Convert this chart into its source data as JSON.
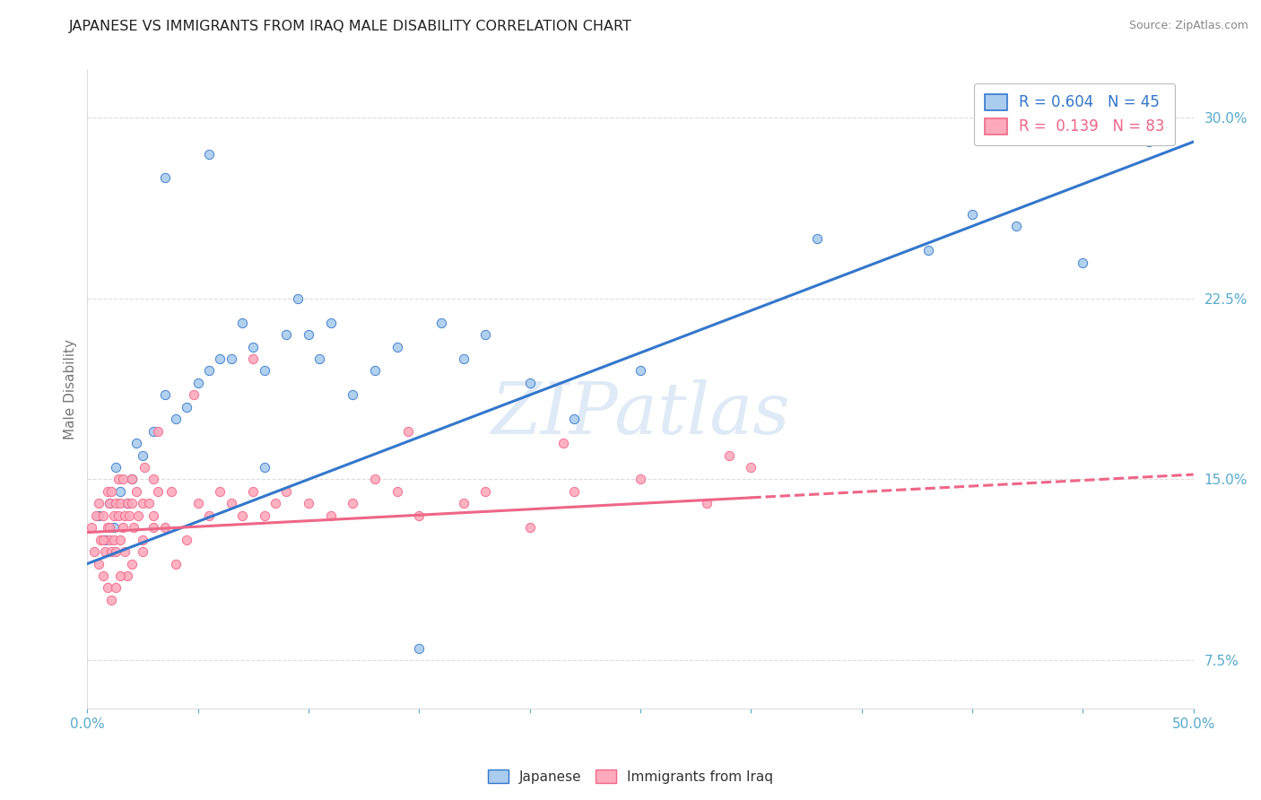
{
  "title": "JAPANESE VS IMMIGRANTS FROM IRAQ MALE DISABILITY CORRELATION CHART",
  "source": "Source: ZipAtlas.com",
  "ylabel": "Male Disability",
  "xlim": [
    0.0,
    50.0
  ],
  "ylim": [
    5.5,
    32.0
  ],
  "yticks": [
    7.5,
    15.0,
    22.5,
    30.0
  ],
  "ytick_labels": [
    "7.5%",
    "15.0%",
    "22.5%",
    "30.0%"
  ],
  "blue_R": 0.604,
  "blue_N": 45,
  "pink_R": 0.139,
  "pink_N": 83,
  "blue_color": "#AACCEE",
  "pink_color": "#FFAABC",
  "blue_line_color": "#3377CC",
  "pink_line_color": "#EE6688",
  "watermark": "ZIPatlas",
  "legend_entries": [
    "Japanese",
    "Immigrants from Iraq"
  ],
  "blue_scatter_x": [
    0.5,
    0.8,
    1.0,
    1.2,
    1.3,
    1.5,
    1.8,
    2.0,
    2.2,
    2.5,
    3.0,
    3.5,
    4.0,
    4.5,
    5.0,
    5.5,
    6.0,
    6.5,
    7.0,
    7.5,
    8.0,
    9.0,
    9.5,
    10.0,
    10.5,
    11.0,
    12.0,
    13.0,
    14.0,
    16.0,
    17.0,
    18.0,
    20.0,
    22.0,
    25.0,
    33.0,
    38.0,
    40.0,
    42.0,
    45.0,
    48.0,
    3.5,
    5.5,
    8.0,
    15.0
  ],
  "blue_scatter_y": [
    13.5,
    12.5,
    14.0,
    13.0,
    15.5,
    14.5,
    14.0,
    15.0,
    16.5,
    16.0,
    17.0,
    18.5,
    17.5,
    18.0,
    19.0,
    19.5,
    20.0,
    20.0,
    21.5,
    20.5,
    19.5,
    21.0,
    22.5,
    21.0,
    20.0,
    21.5,
    18.5,
    19.5,
    20.5,
    21.5,
    20.0,
    21.0,
    19.0,
    17.5,
    19.5,
    25.0,
    24.5,
    26.0,
    25.5,
    24.0,
    29.0,
    27.5,
    28.5,
    15.5,
    8.0
  ],
  "pink_scatter_x": [
    0.2,
    0.3,
    0.4,
    0.5,
    0.5,
    0.6,
    0.7,
    0.7,
    0.8,
    0.9,
    0.9,
    1.0,
    1.0,
    1.0,
    1.1,
    1.1,
    1.2,
    1.2,
    1.3,
    1.3,
    1.4,
    1.4,
    1.5,
    1.5,
    1.6,
    1.6,
    1.7,
    1.8,
    1.9,
    2.0,
    2.0,
    2.1,
    2.2,
    2.3,
    2.5,
    2.6,
    2.8,
    3.0,
    3.0,
    3.2,
    3.5,
    3.8,
    4.0,
    4.5,
    5.0,
    5.5,
    6.0,
    6.5,
    7.0,
    7.5,
    8.0,
    8.5,
    9.0,
    10.0,
    11.0,
    12.0,
    13.0,
    14.0,
    15.0,
    17.0,
    18.0,
    20.0,
    22.0,
    25.0,
    28.0,
    30.0,
    3.2,
    4.8,
    7.5,
    14.5,
    21.5,
    29.0,
    2.5,
    1.8,
    0.7,
    0.9,
    1.1,
    1.3,
    1.5,
    1.7,
    2.0,
    2.5,
    3.0
  ],
  "pink_scatter_y": [
    13.0,
    12.0,
    13.5,
    11.5,
    14.0,
    12.5,
    11.0,
    13.5,
    12.0,
    13.0,
    14.5,
    12.5,
    13.0,
    14.0,
    12.0,
    14.5,
    12.5,
    13.5,
    12.0,
    14.0,
    13.5,
    15.0,
    12.5,
    14.0,
    13.0,
    15.0,
    13.5,
    14.0,
    13.5,
    14.0,
    15.0,
    13.0,
    14.5,
    13.5,
    14.0,
    15.5,
    14.0,
    13.5,
    15.0,
    14.5,
    13.0,
    14.5,
    11.5,
    12.5,
    14.0,
    13.5,
    14.5,
    14.0,
    13.5,
    14.5,
    13.5,
    14.0,
    14.5,
    14.0,
    13.5,
    14.0,
    15.0,
    14.5,
    13.5,
    14.0,
    14.5,
    13.0,
    14.5,
    15.0,
    14.0,
    15.5,
    17.0,
    18.5,
    20.0,
    17.0,
    16.5,
    16.0,
    12.0,
    11.0,
    12.5,
    10.5,
    10.0,
    10.5,
    11.0,
    12.0,
    11.5,
    12.5,
    13.0
  ],
  "blue_line_start_x": 0.0,
  "blue_line_end_x": 50.0,
  "blue_line_start_y": 11.5,
  "blue_line_end_y": 29.0,
  "pink_line_start_x": 0.0,
  "pink_line_solid_end_x": 30.0,
  "pink_line_dashed_end_x": 50.0,
  "pink_line_start_y": 12.8,
  "pink_line_end_y": 15.2,
  "grid_color": "#DDDDDD",
  "spine_color": "#CCCCCC",
  "tick_color": "#55AACC",
  "title_color": "#222222",
  "ylabel_color": "#777777",
  "source_color": "#888888",
  "watermark_color": "#C8DCF0",
  "background_color": "#FFFFFF"
}
